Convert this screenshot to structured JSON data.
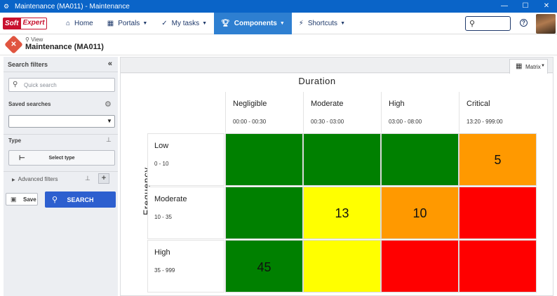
{
  "window": {
    "title": "Maintenance (MA011) - Maintenance",
    "controls": [
      "—",
      "☐",
      "✕"
    ]
  },
  "nav": {
    "logo_soft": "Soft",
    "logo_expert": "Expert",
    "items": [
      {
        "label": "Home",
        "icon": "home-icon"
      },
      {
        "label": "Portals",
        "icon": "grid-icon"
      },
      {
        "label": "My tasks",
        "icon": "check-icon"
      },
      {
        "label": "Components",
        "icon": "trophy-icon",
        "active": true
      },
      {
        "label": "Shortcuts",
        "icon": "bolt-icon"
      }
    ],
    "help": "?"
  },
  "page": {
    "breadcrumb": "View",
    "title": "Maintenance (MA011)"
  },
  "filters": {
    "header": "Search filters",
    "quick_search_placeholder": "Quick search",
    "saved_searches_label": "Saved searches",
    "saved_searches_value": "",
    "type_label": "Type",
    "select_type_label": "Select type",
    "advanced_filters_label": "Advanced filters",
    "save_label": "Save",
    "search_label": "SEARCH"
  },
  "view": {
    "matrix_label": "Matrix"
  },
  "matrix": {
    "column_title": "Duration",
    "row_title": "Frequency",
    "columns": [
      {
        "name": "Negligible",
        "range": "00:00 - 00:30"
      },
      {
        "name": "Moderate",
        "range": "00:30 - 03:00"
      },
      {
        "name": "High",
        "range": "03:00 - 08:00"
      },
      {
        "name": "Critical",
        "range": "13:20 - 999:00"
      }
    ],
    "rows": [
      {
        "name": "Low",
        "range": "0 - 10",
        "cells": [
          {
            "value": "",
            "color": "#008000"
          },
          {
            "value": "",
            "color": "#008000"
          },
          {
            "value": "",
            "color": "#008000"
          },
          {
            "value": "5",
            "color": "#ff9900"
          }
        ]
      },
      {
        "name": "Moderate",
        "range": "10 - 35",
        "cells": [
          {
            "value": "",
            "color": "#008000"
          },
          {
            "value": "13",
            "color": "#ffff00"
          },
          {
            "value": "10",
            "color": "#ff9900"
          },
          {
            "value": "",
            "color": "#ff0000"
          }
        ]
      },
      {
        "name": "High",
        "range": "35 - 999",
        "cells": [
          {
            "value": "45",
            "color": "#008000"
          },
          {
            "value": "",
            "color": "#ffff00"
          },
          {
            "value": "",
            "color": "#ff0000"
          },
          {
            "value": "",
            "color": "#ff0000"
          }
        ]
      }
    ]
  }
}
